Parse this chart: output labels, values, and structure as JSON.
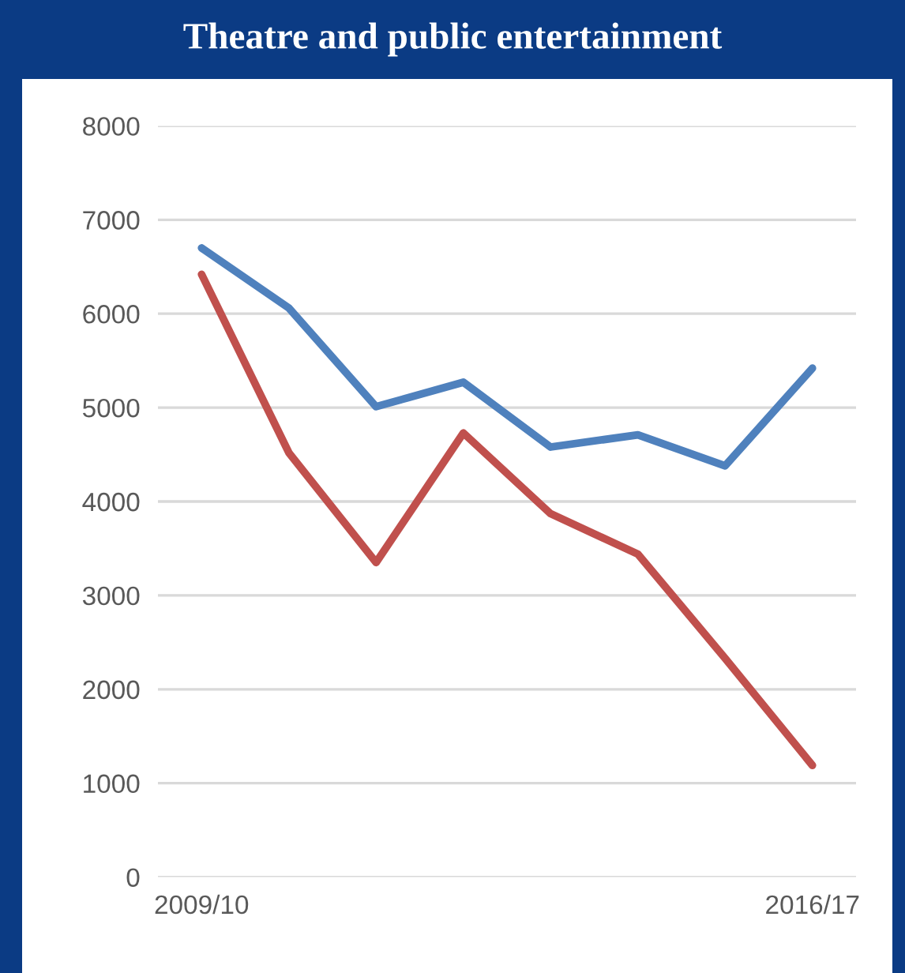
{
  "chart_data": {
    "type": "line",
    "title": "Theatre and public entertainment",
    "categories": [
      "2009/10",
      null,
      null,
      null,
      null,
      null,
      null,
      "2016/17"
    ],
    "series": [
      {
        "color": "#4f81bd",
        "values": [
          6700,
          6060,
          5010,
          5270,
          4580,
          4710,
          4380,
          5420
        ]
      },
      {
        "color": "#c0504d",
        "values": [
          6420,
          4520,
          3350,
          4730,
          3870,
          3440,
          2330,
          1190
        ]
      }
    ],
    "ylim": [
      0,
      8000
    ],
    "yticks": [
      0,
      1000,
      2000,
      3000,
      4000,
      5000,
      6000,
      7000,
      8000
    ],
    "grid": "y",
    "marker": "none",
    "line_style": "solid"
  }
}
